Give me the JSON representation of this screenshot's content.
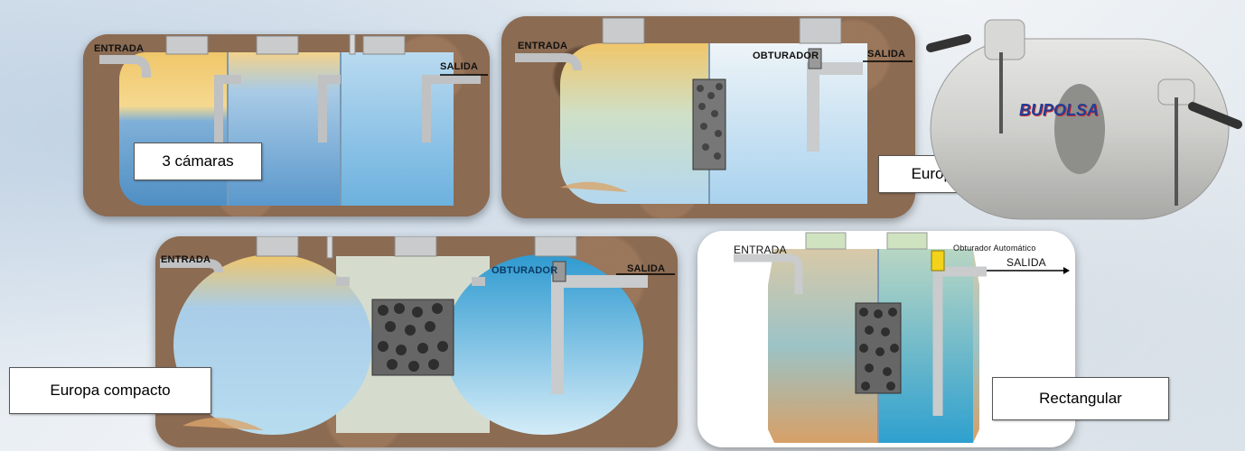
{
  "panels": {
    "tres_camaras": {
      "caption": "3 cámaras",
      "entrada": "ENTRADA",
      "salida": "SALIDA"
    },
    "europa": {
      "caption": "Europa",
      "entrada": "ENTRADA",
      "obturador": "OBTURADOR",
      "salida": "SALIDA"
    },
    "europa_compacto": {
      "caption": "Europa compacto",
      "entrada": "ENTRADA",
      "obturador": "OBTURADOR",
      "salida": "SALIDA"
    },
    "rectangular": {
      "caption": "Rectangular",
      "entrada": "ENTRADA",
      "obturador": "Obturador Automático",
      "salida": "SALIDA"
    },
    "tank_photo": {
      "brand": "BUPOLSA"
    }
  },
  "colors": {
    "soil": "#8b6b52",
    "sludge_yellow": "#f2c86a",
    "water_blue": "#7fb6dc",
    "water_deep": "#2f9ad0",
    "pipe_grey": "#c9cbcc",
    "brand_blue": "#1f3f9a",
    "brand_red": "#cc2a2a"
  }
}
